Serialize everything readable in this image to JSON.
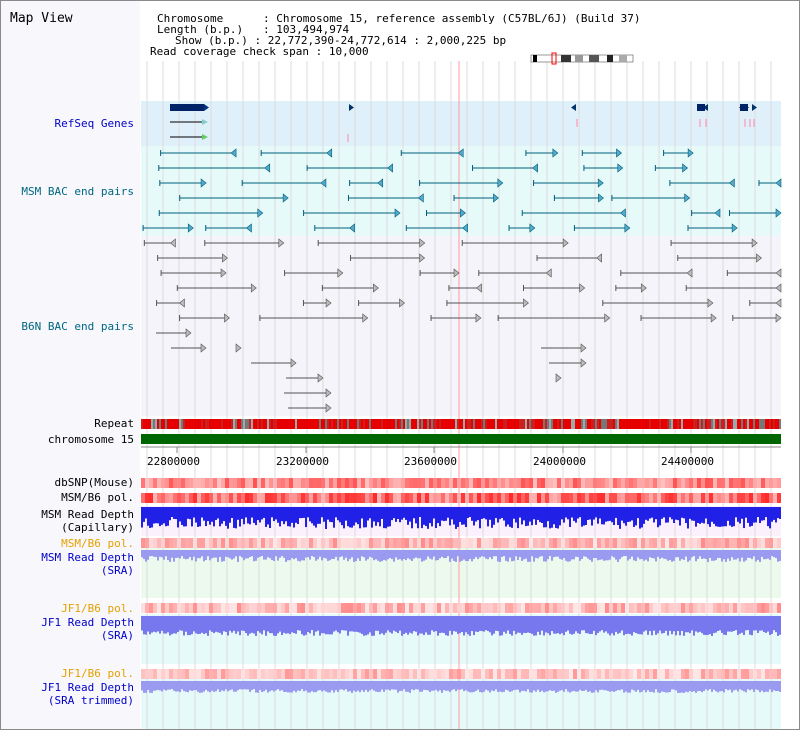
{
  "title": "Map View",
  "info": {
    "chromosome_label": "Chromosome",
    "chromosome_value": "Chromosome 15, reference assembly (C57BL/6J) (Build 37)",
    "length_label": "Length (b.p.)",
    "length_value": "103,494,974",
    "show_label": "Show (b.p.)",
    "show_value": "22,772,390-24,772,614 : 2,000,225 bp",
    "coverage_label": "Read coverage check span",
    "coverage_value": "10,000"
  },
  "tracks": {
    "refseq": "RefSeq Genes",
    "msm_bac": "MSM BAC end pairs",
    "b6n_bac": "B6N BAC end pairs",
    "repeat": "Repeat",
    "chromosome": "chromosome 15",
    "dbsnp": "dbSNP(Mouse)",
    "msm_b6_pol": "MSM/B6 pol.",
    "msm_depth_cap_1": "MSM Read Depth",
    "msm_depth_cap_2": "(Capillary)",
    "msm_b6_pol_2": "MSM/B6 pol.",
    "msm_depth_sra_1": "MSM Read Depth",
    "msm_depth_sra_2": "(SRA)",
    "jf1_b6_pol": "JF1/B6 pol.",
    "jf1_depth_sra_1": "JF1 Read Depth",
    "jf1_depth_sra_2": "(SRA)",
    "jf1_b6_pol_2": "JF1/B6 pol.",
    "jf1_depth_trim_1": "JF1 Read Depth",
    "jf1_depth_trim_2": "(SRA trimmed)"
  },
  "axis": {
    "ticks": [
      "22800000",
      "23200000",
      "23600000",
      "24000000",
      "24400000"
    ]
  },
  "colors": {
    "label_blue": "#0000cc",
    "label_teal": "#006680",
    "label_orange": "#e6a000",
    "refseq_bg": "#dff0fa",
    "bac_bg": "#e6fafa",
    "chrom_green": "#006600",
    "depth_blue": "#2020e6",
    "depth_light": "#9a9af0",
    "pol_red": "#ff3030"
  }
}
